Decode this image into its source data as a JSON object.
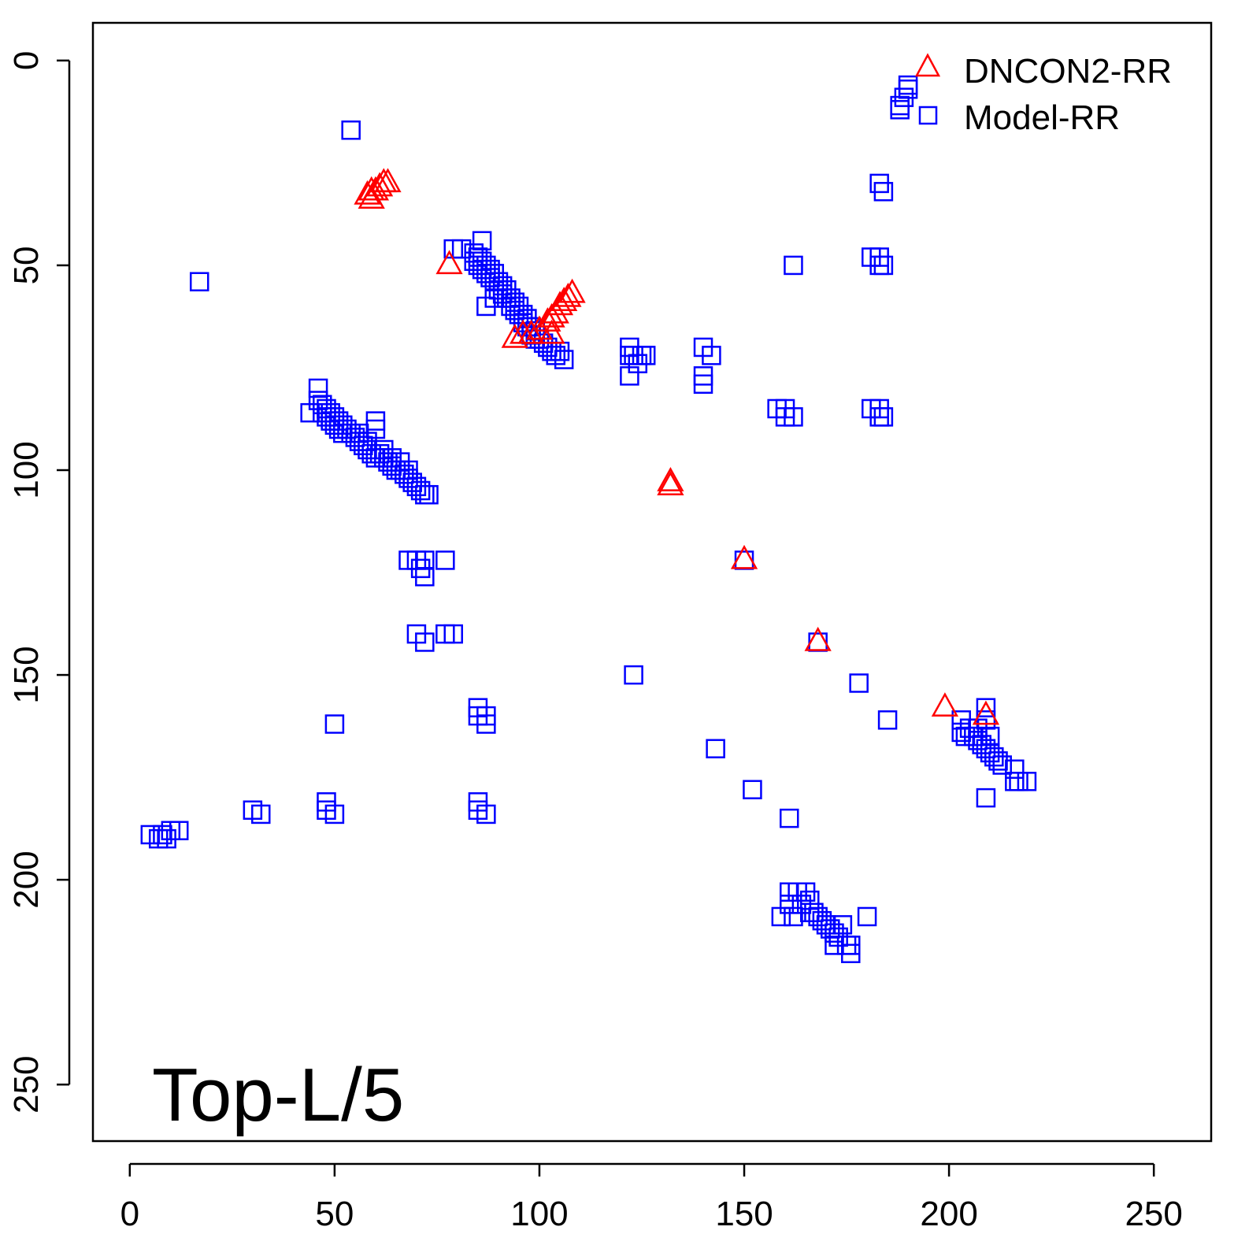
{
  "chart_data": {
    "type": "scatter",
    "title": "",
    "annotation": "Top-L/5",
    "xlabel": "",
    "ylabel": "",
    "xlim": [
      -9,
      264
    ],
    "ylim": [
      -9.2,
      263.8
    ],
    "y_inverted": true,
    "x_ticks": [
      0,
      50,
      100,
      150,
      200,
      250
    ],
    "y_ticks": [
      0,
      50,
      100,
      150,
      200,
      250
    ],
    "grid": false,
    "legend_position": "top-right",
    "series": [
      {
        "name": "DNCON2-RR",
        "marker": "triangle",
        "color": "#ff0000",
        "points": [
          [
            58,
            33
          ],
          [
            59,
            34
          ],
          [
            59,
            32
          ],
          [
            60,
            32
          ],
          [
            61,
            31
          ],
          [
            62,
            30
          ],
          [
            63,
            30
          ],
          [
            78,
            50
          ],
          [
            94,
            68
          ],
          [
            96,
            67
          ],
          [
            98,
            67
          ],
          [
            100,
            66
          ],
          [
            102,
            64
          ],
          [
            103,
            63
          ],
          [
            104,
            62
          ],
          [
            105,
            60
          ],
          [
            106,
            59
          ],
          [
            107,
            58
          ],
          [
            108,
            57
          ],
          [
            103,
            67
          ],
          [
            132,
            104
          ],
          [
            132,
            103
          ],
          [
            150,
            122
          ],
          [
            168,
            142
          ],
          [
            199,
            158
          ],
          [
            209,
            160
          ]
        ]
      },
      {
        "name": "Model-RR",
        "marker": "square",
        "color": "#0000ff",
        "points": [
          [
            17,
            54
          ],
          [
            54,
            17
          ],
          [
            188,
            11
          ],
          [
            189,
            9
          ],
          [
            190,
            7
          ],
          [
            190,
            6
          ],
          [
            188,
            12
          ],
          [
            183,
            30
          ],
          [
            184,
            32
          ],
          [
            162,
            50
          ],
          [
            181,
            48
          ],
          [
            183,
            48
          ],
          [
            183,
            50
          ],
          [
            184,
            50
          ],
          [
            84,
            47
          ],
          [
            84,
            49
          ],
          [
            85,
            48
          ],
          [
            85,
            50
          ],
          [
            86,
            49
          ],
          [
            86,
            51
          ],
          [
            87,
            50
          ],
          [
            87,
            52
          ],
          [
            88,
            51
          ],
          [
            88,
            53
          ],
          [
            89,
            52
          ],
          [
            89,
            54
          ],
          [
            90,
            54
          ],
          [
            90,
            56
          ],
          [
            91,
            55
          ],
          [
            91,
            57
          ],
          [
            92,
            56
          ],
          [
            92,
            58
          ],
          [
            93,
            58
          ],
          [
            93,
            60
          ],
          [
            94,
            59
          ],
          [
            94,
            61
          ],
          [
            95,
            60
          ],
          [
            95,
            62
          ],
          [
            96,
            62
          ],
          [
            96,
            64
          ],
          [
            97,
            63
          ],
          [
            97,
            65
          ],
          [
            98,
            65
          ],
          [
            98,
            67
          ],
          [
            99,
            66
          ],
          [
            99,
            68
          ],
          [
            100,
            68
          ],
          [
            101,
            69
          ],
          [
            102,
            70
          ],
          [
            103,
            71
          ],
          [
            104,
            72
          ],
          [
            106,
            73
          ],
          [
            105,
            71
          ],
          [
            86,
            44
          ],
          [
            79,
            46
          ],
          [
            81,
            46
          ],
          [
            87,
            60
          ],
          [
            89,
            58
          ],
          [
            122,
            70
          ],
          [
            122,
            72
          ],
          [
            122,
            77
          ],
          [
            123,
            72
          ],
          [
            124,
            74
          ],
          [
            125,
            72
          ],
          [
            126,
            72
          ],
          [
            140,
            70
          ],
          [
            142,
            72
          ],
          [
            140,
            77
          ],
          [
            140,
            79
          ],
          [
            158,
            85
          ],
          [
            160,
            85
          ],
          [
            160,
            87
          ],
          [
            162,
            87
          ],
          [
            181,
            85
          ],
          [
            183,
            85
          ],
          [
            183,
            87
          ],
          [
            184,
            87
          ],
          [
            44,
            86
          ],
          [
            46,
            80
          ],
          [
            46,
            83
          ],
          [
            47,
            84
          ],
          [
            47,
            86
          ],
          [
            48,
            85
          ],
          [
            48,
            87
          ],
          [
            49,
            86
          ],
          [
            49,
            88
          ],
          [
            50,
            87
          ],
          [
            50,
            89
          ],
          [
            51,
            88
          ],
          [
            51,
            90
          ],
          [
            52,
            89
          ],
          [
            52,
            91
          ],
          [
            53,
            90
          ],
          [
            54,
            91
          ],
          [
            55,
            92
          ],
          [
            56,
            93
          ],
          [
            57,
            94
          ],
          [
            58,
            95
          ],
          [
            59,
            96
          ],
          [
            60,
            88
          ],
          [
            60,
            90
          ],
          [
            60,
            97
          ],
          [
            61,
            96
          ],
          [
            62,
            97
          ],
          [
            63,
            98
          ],
          [
            64,
            99
          ],
          [
            65,
            100
          ],
          [
            66,
            100
          ],
          [
            67,
            101
          ],
          [
            68,
            102
          ],
          [
            69,
            103
          ],
          [
            70,
            104
          ],
          [
            71,
            105
          ],
          [
            72,
            106
          ],
          [
            73,
            106
          ],
          [
            56,
            91
          ],
          [
            58,
            93
          ],
          [
            62,
            95
          ],
          [
            64,
            97
          ],
          [
            66,
            98
          ],
          [
            68,
            100
          ],
          [
            68,
            122
          ],
          [
            70,
            122
          ],
          [
            71,
            124
          ],
          [
            72,
            126
          ],
          [
            72,
            122
          ],
          [
            77,
            122
          ],
          [
            70,
            140
          ],
          [
            72,
            142
          ],
          [
            77,
            140
          ],
          [
            79,
            140
          ],
          [
            85,
            158
          ],
          [
            85,
            160
          ],
          [
            87,
            160
          ],
          [
            87,
            162
          ],
          [
            50,
            162
          ],
          [
            85,
            181
          ],
          [
            85,
            183
          ],
          [
            87,
            184
          ],
          [
            48,
            181
          ],
          [
            48,
            183
          ],
          [
            50,
            184
          ],
          [
            30,
            183
          ],
          [
            32,
            184
          ],
          [
            5,
            189
          ],
          [
            7,
            190
          ],
          [
            8,
            189
          ],
          [
            9,
            190
          ],
          [
            10,
            188
          ],
          [
            12,
            188
          ],
          [
            123,
            150
          ],
          [
            143,
            168
          ],
          [
            152,
            178
          ],
          [
            161,
            185
          ],
          [
            150,
            122
          ],
          [
            168,
            142
          ],
          [
            178,
            152
          ],
          [
            185,
            161
          ],
          [
            203,
            161
          ],
          [
            203,
            164
          ],
          [
            204,
            165
          ],
          [
            205,
            163
          ],
          [
            206,
            165
          ],
          [
            207,
            166
          ],
          [
            208,
            167
          ],
          [
            209,
            158
          ],
          [
            209,
            161
          ],
          [
            209,
            168
          ],
          [
            210,
            169
          ],
          [
            211,
            170
          ],
          [
            212,
            171
          ],
          [
            213,
            172
          ],
          [
            216,
            173
          ],
          [
            216,
            176
          ],
          [
            217,
            176
          ],
          [
            219,
            176
          ],
          [
            209,
            180
          ],
          [
            207,
            163
          ],
          [
            210,
            165
          ],
          [
            161,
            203
          ],
          [
            161,
            206
          ],
          [
            159,
            209
          ],
          [
            163,
            203
          ],
          [
            165,
            203
          ],
          [
            166,
            205
          ],
          [
            164,
            206
          ],
          [
            166,
            208
          ],
          [
            167,
            208
          ],
          [
            168,
            209
          ],
          [
            169,
            210
          ],
          [
            170,
            211
          ],
          [
            171,
            212
          ],
          [
            172,
            213
          ],
          [
            173,
            214
          ],
          [
            174,
            211
          ],
          [
            175,
            216
          ],
          [
            172,
            216
          ],
          [
            176,
            218
          ],
          [
            176,
            216
          ],
          [
            180,
            209
          ],
          [
            162,
            209
          ]
        ]
      }
    ]
  }
}
